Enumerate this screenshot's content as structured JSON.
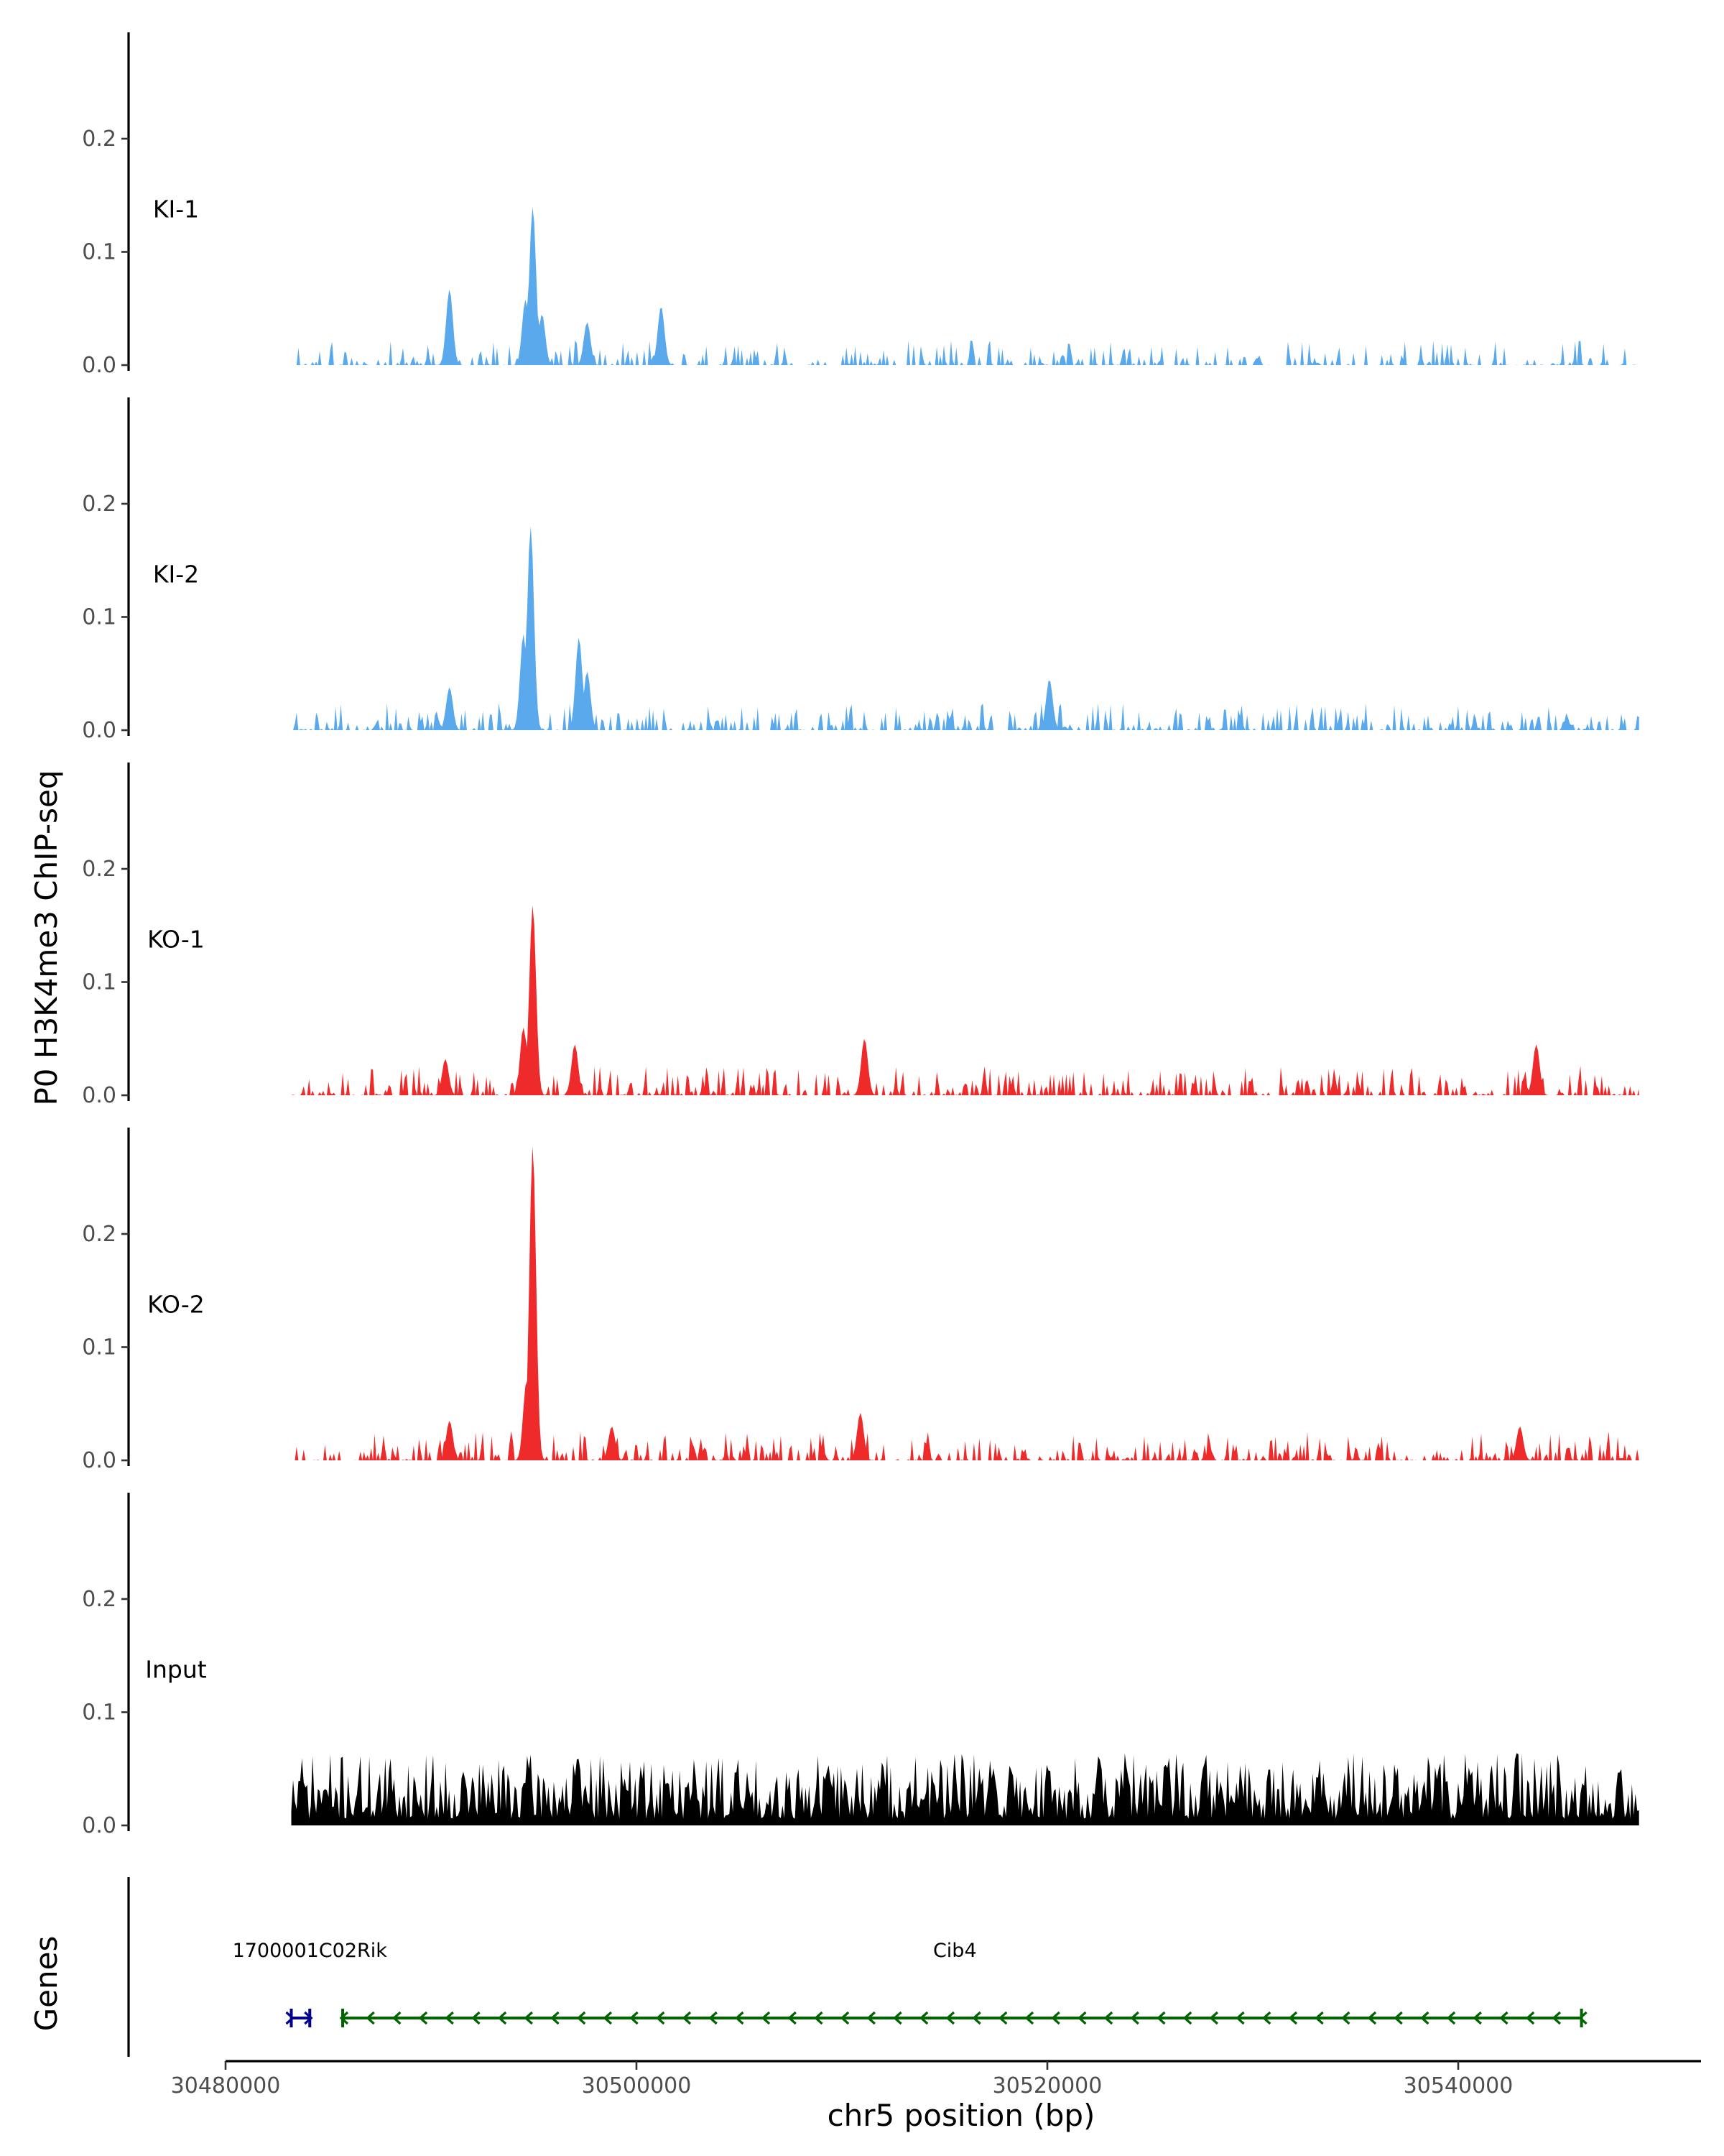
{
  "chart_data": {
    "type": "area",
    "chromosome": "chr5",
    "xlabel": "chr5 position (bp)",
    "ylabel": "P0 H3K4me3 ChIP-seq",
    "genes_label": "Genes",
    "xlim": [
      30480000,
      30552000
    ],
    "data_range": [
      30483200,
      30548800
    ],
    "x_ticks": [
      30480000,
      30500000,
      30520000,
      30540000
    ],
    "x_tick_labels": [
      "30480000",
      "30500000",
      "30520000",
      "30540000"
    ],
    "y_ticks": [
      0.0,
      0.1,
      0.2
    ],
    "y_tick_labels": [
      "0.0",
      "0.1",
      "0.2"
    ],
    "ylim": [
      0,
      0.29
    ],
    "colors": {
      "KI": "#5aa9ec",
      "KO": "#ee2a2a",
      "Input": "#000000",
      "gene_minus": "#006400",
      "gene_plus": "#00008b"
    },
    "tracks": [
      {
        "name": "KI-1",
        "color": "#5aa9ec",
        "seed": 11,
        "sparsity": 0.55,
        "noise": 0.022,
        "peaks": [
          {
            "x": 30494950,
            "y": 0.14
          },
          {
            "x": 30494600,
            "y": 0.058
          },
          {
            "x": 30495400,
            "y": 0.045
          },
          {
            "x": 30490900,
            "y": 0.067
          },
          {
            "x": 30497600,
            "y": 0.038
          },
          {
            "x": 30501200,
            "y": 0.052
          }
        ]
      },
      {
        "name": "KI-2",
        "color": "#5aa9ec",
        "seed": 23,
        "sparsity": 0.45,
        "noise": 0.024,
        "peaks": [
          {
            "x": 30494850,
            "y": 0.18
          },
          {
            "x": 30494500,
            "y": 0.085
          },
          {
            "x": 30497200,
            "y": 0.082
          },
          {
            "x": 30497600,
            "y": 0.052
          },
          {
            "x": 30490900,
            "y": 0.038
          },
          {
            "x": 30520100,
            "y": 0.045
          }
        ]
      },
      {
        "name": "KO-1",
        "color": "#ee2a2a",
        "seed": 37,
        "sparsity": 0.42,
        "noise": 0.026,
        "peaks": [
          {
            "x": 30494950,
            "y": 0.168
          },
          {
            "x": 30494500,
            "y": 0.06
          },
          {
            "x": 30497000,
            "y": 0.045
          },
          {
            "x": 30511100,
            "y": 0.05
          },
          {
            "x": 30543800,
            "y": 0.045
          },
          {
            "x": 30490700,
            "y": 0.032
          }
        ]
      },
      {
        "name": "KO-2",
        "color": "#ee2a2a",
        "seed": 53,
        "sparsity": 0.4,
        "noise": 0.026,
        "peaks": [
          {
            "x": 30494950,
            "y": 0.278
          },
          {
            "x": 30494650,
            "y": 0.07
          },
          {
            "x": 30490900,
            "y": 0.035
          },
          {
            "x": 30510900,
            "y": 0.042
          },
          {
            "x": 30543000,
            "y": 0.03
          },
          {
            "x": 30498800,
            "y": 0.03
          }
        ]
      },
      {
        "name": "Input",
        "color": "#000000",
        "seed": 71,
        "sparsity": 0.0,
        "noise": 0.058,
        "peaks": []
      }
    ],
    "genes": [
      {
        "name": "1700001C02Rik",
        "start": 30483200,
        "end": 30484100,
        "strand": "+",
        "color": "#00008b",
        "label_x": 30484100
      },
      {
        "name": "Cib4",
        "start": 30485700,
        "end": 30546000,
        "strand": "-",
        "color": "#006400",
        "label_x": 30515500
      }
    ]
  }
}
